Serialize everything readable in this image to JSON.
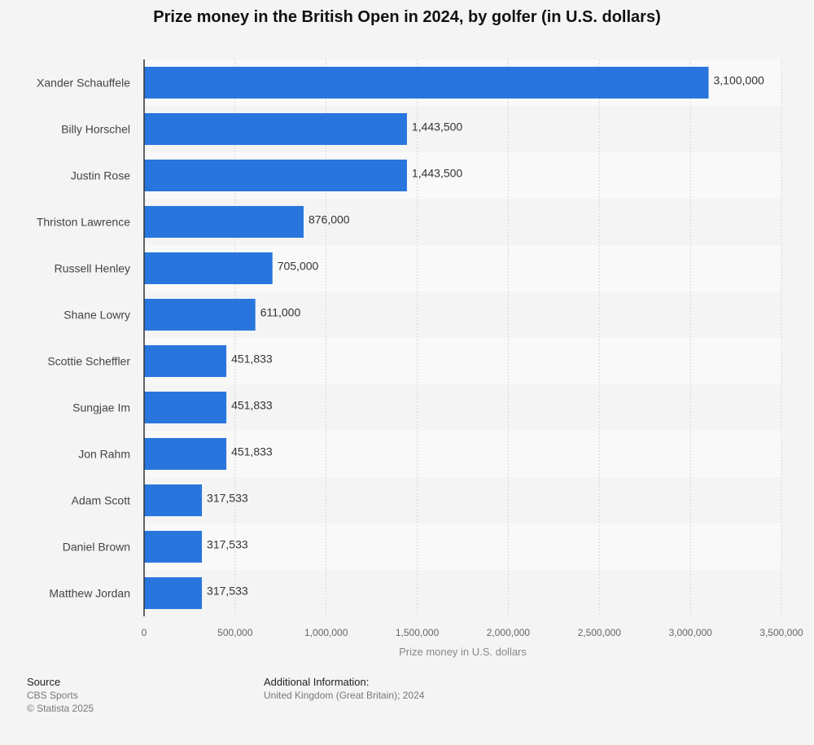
{
  "title": "Prize money in the British Open in 2024, by golfer (in U.S. dollars)",
  "chart_data": {
    "type": "bar",
    "orientation": "horizontal",
    "categories": [
      "Xander Schauffele",
      "Billy Horschel",
      "Justin Rose",
      "Thriston Lawrence",
      "Russell Henley",
      "Shane Lowry",
      "Scottie Scheffler",
      "Sungjae Im",
      "Jon Rahm",
      "Adam Scott",
      "Daniel Brown",
      "Matthew Jordan"
    ],
    "values": [
      3100000,
      1443500,
      1443500,
      876000,
      705000,
      611000,
      451833,
      451833,
      451833,
      317533,
      317533,
      317533
    ],
    "value_labels": [
      "3,100,000",
      "1,443,500",
      "1,443,500",
      "876,000",
      "705,000",
      "611,000",
      "451,833",
      "451,833",
      "451,833",
      "317,533",
      "317,533",
      "317,533"
    ],
    "xlabel": "Prize money in U.S. dollars",
    "ylabel": "",
    "xlim": [
      0,
      3500000
    ],
    "xticks": [
      0,
      500000,
      1000000,
      1500000,
      2000000,
      2500000,
      3000000,
      3500000
    ],
    "xtick_labels": [
      "0",
      "500,000",
      "1,000,000",
      "1,500,000",
      "2,000,000",
      "2,500,000",
      "3,000,000",
      "3,500,000"
    ],
    "grid": "vertical dashed",
    "bar_color": "#2876dd"
  },
  "footer": {
    "source_heading": "Source",
    "source_lines": [
      "CBS Sports",
      "© Statista 2025"
    ],
    "info_heading": "Additional Information:",
    "info_lines": [
      "United Kingdom (Great Britain); 2024"
    ]
  }
}
